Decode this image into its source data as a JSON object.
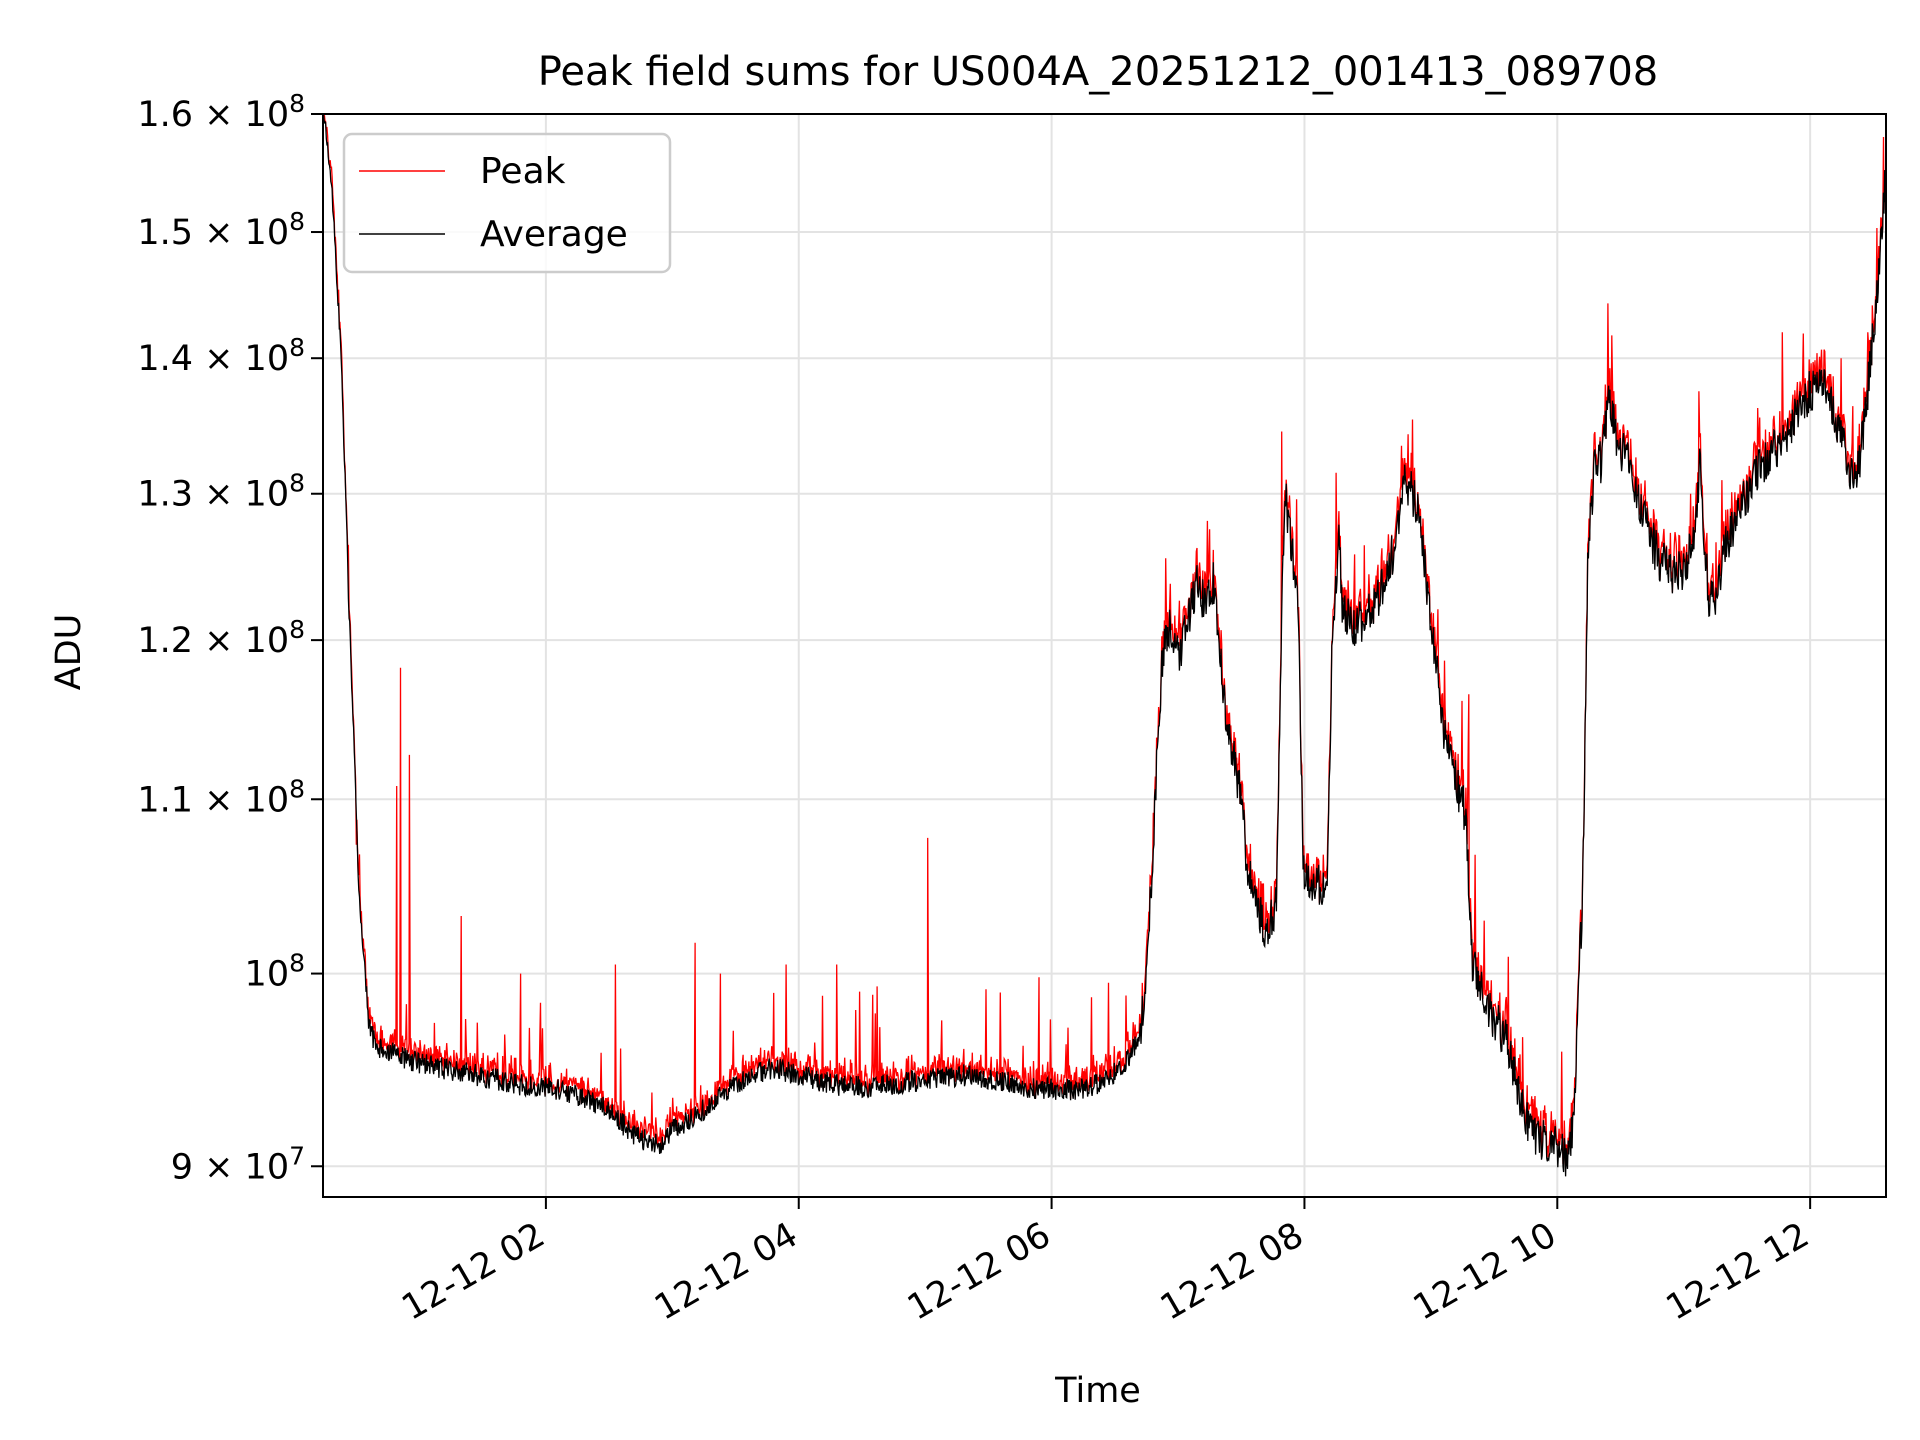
{
  "chart_data": {
    "type": "line",
    "title": "Peak field sums for US004A_20251212_001413_089708",
    "xlabel": "Time",
    "ylabel": "ADU",
    "yscale": "log",
    "ylim": [
      88500000,
      160000000
    ],
    "xlim_hours": [
      0.2369,
      12.6
    ],
    "grid": true,
    "legend_position": "upper-left",
    "x_ticks": [
      {
        "hour": 2,
        "label": "12-12 02"
      },
      {
        "hour": 4,
        "label": "12-12 04"
      },
      {
        "hour": 6,
        "label": "12-12 06"
      },
      {
        "hour": 8,
        "label": "12-12 08"
      },
      {
        "hour": 10,
        "label": "12-12 10"
      },
      {
        "hour": 12,
        "label": "12-12 12"
      }
    ],
    "y_ticks": [
      {
        "value": 90000000,
        "mantissa": "9",
        "exponent": "7",
        "is_power": false
      },
      {
        "value": 100000000,
        "mantissa": "10",
        "exponent": "8",
        "is_power": true
      },
      {
        "value": 110000000,
        "mantissa": "1.1",
        "exponent": "8",
        "is_power": false
      },
      {
        "value": 120000000,
        "mantissa": "1.2",
        "exponent": "8",
        "is_power": false
      },
      {
        "value": 130000000,
        "mantissa": "1.3",
        "exponent": "8",
        "is_power": false
      },
      {
        "value": 140000000,
        "mantissa": "1.4",
        "exponent": "8",
        "is_power": false
      },
      {
        "value": 150000000,
        "mantissa": "1.5",
        "exponent": "8",
        "is_power": false
      },
      {
        "value": 160000000,
        "mantissa": "1.6",
        "exponent": "8",
        "is_power": false
      }
    ],
    "times_symbol": "×",
    "series": [
      {
        "name": "Peak",
        "color": "#ff0000"
      },
      {
        "name": "Average",
        "color": "#000000"
      }
    ],
    "average_anchors": [
      [
        0.237,
        160
      ],
      [
        0.3,
        155
      ],
      [
        0.38,
        140
      ],
      [
        0.45,
        120
      ],
      [
        0.52,
        105
      ],
      [
        0.6,
        97.0
      ],
      [
        0.68,
        96.0
      ],
      [
        0.8,
        95.7
      ],
      [
        1.0,
        95.2
      ],
      [
        1.3,
        94.8
      ],
      [
        1.6,
        94.4
      ],
      [
        1.8,
        94.1
      ],
      [
        2.0,
        94.0
      ],
      [
        2.3,
        93.5
      ],
      [
        2.5,
        92.8
      ],
      [
        2.7,
        91.5
      ],
      [
        2.9,
        91.0
      ],
      [
        3.0,
        91.8
      ],
      [
        3.2,
        92.6
      ],
      [
        3.4,
        93.6
      ],
      [
        3.6,
        94.5
      ],
      [
        3.8,
        95.0
      ],
      [
        4.0,
        94.6
      ],
      [
        4.3,
        94.1
      ],
      [
        4.6,
        94.0
      ],
      [
        5.0,
        94.4
      ],
      [
        5.3,
        94.6
      ],
      [
        5.6,
        94.3
      ],
      [
        5.8,
        94.0
      ],
      [
        6.0,
        93.9
      ],
      [
        6.2,
        93.8
      ],
      [
        6.4,
        94.2
      ],
      [
        6.55,
        95.0
      ],
      [
        6.7,
        96.5
      ],
      [
        6.73,
        98.5
      ],
      [
        6.78,
        104
      ],
      [
        6.82,
        110
      ],
      [
        6.87,
        118
      ],
      [
        6.92,
        121
      ],
      [
        7.0,
        119
      ],
      [
        7.08,
        121
      ],
      [
        7.15,
        124
      ],
      [
        7.22,
        122
      ],
      [
        7.28,
        124
      ],
      [
        7.33,
        119
      ],
      [
        7.4,
        114
      ],
      [
        7.48,
        111
      ],
      [
        7.55,
        106
      ],
      [
        7.62,
        104
      ],
      [
        7.7,
        102
      ],
      [
        7.78,
        104
      ],
      [
        7.82,
        122
      ],
      [
        7.85,
        130
      ],
      [
        7.9,
        126
      ],
      [
        7.95,
        122
      ],
      [
        7.99,
        106
      ],
      [
        8.05,
        104.5
      ],
      [
        8.12,
        105
      ],
      [
        8.18,
        104.8
      ],
      [
        8.22,
        120
      ],
      [
        8.27,
        127
      ],
      [
        8.3,
        122
      ],
      [
        8.4,
        121
      ],
      [
        8.5,
        121.5
      ],
      [
        8.6,
        123
      ],
      [
        8.7,
        126
      ],
      [
        8.8,
        131
      ],
      [
        8.9,
        129
      ],
      [
        8.95,
        125
      ],
      [
        9.05,
        118
      ],
      [
        9.1,
        114
      ],
      [
        9.2,
        111
      ],
      [
        9.28,
        109
      ],
      [
        9.32,
        101
      ],
      [
        9.4,
        99
      ],
      [
        9.5,
        97.5
      ],
      [
        9.6,
        96.5
      ],
      [
        9.7,
        93.5
      ],
      [
        9.8,
        91.5
      ],
      [
        9.9,
        91.2
      ],
      [
        10.0,
        91.0
      ],
      [
        10.08,
        90.3
      ],
      [
        10.13,
        92
      ],
      [
        10.17,
        100
      ],
      [
        10.2,
        104
      ],
      [
        10.24,
        125
      ],
      [
        10.3,
        133
      ],
      [
        10.35,
        132
      ],
      [
        10.4,
        137
      ],
      [
        10.5,
        133
      ],
      [
        10.55,
        134
      ],
      [
        10.62,
        130
      ],
      [
        10.7,
        128
      ],
      [
        10.8,
        125.5
      ],
      [
        10.9,
        124.5
      ],
      [
        11.0,
        124.5
      ],
      [
        11.05,
        126
      ],
      [
        11.1,
        128
      ],
      [
        11.13,
        133
      ],
      [
        11.16,
        127
      ],
      [
        11.2,
        122.5
      ],
      [
        11.25,
        123
      ],
      [
        11.32,
        126
      ],
      [
        11.4,
        128
      ],
      [
        11.5,
        130
      ],
      [
        11.6,
        132
      ],
      [
        11.7,
        133
      ],
      [
        11.8,
        133.5
      ],
      [
        11.9,
        136
      ],
      [
        12.0,
        137.5
      ],
      [
        12.08,
        138.5
      ],
      [
        12.15,
        137
      ],
      [
        12.22,
        135
      ],
      [
        12.3,
        132
      ],
      [
        12.35,
        131
      ],
      [
        12.4,
        133
      ],
      [
        12.45,
        137
      ],
      [
        12.5,
        142
      ],
      [
        12.55,
        148
      ],
      [
        12.6,
        155
      ]
    ],
    "spikes": [
      [
        0.85,
        118.2
      ],
      [
        0.82,
        110.8
      ],
      [
        0.92,
        112.7
      ],
      [
        0.5,
        107.3
      ],
      [
        1.33,
        103.2
      ],
      [
        1.8,
        100.0
      ],
      [
        2.55,
        100.5
      ],
      [
        3.18,
        101.7
      ],
      [
        3.38,
        100.0
      ],
      [
        3.9,
        100.5
      ],
      [
        4.3,
        100.5
      ],
      [
        5.02,
        107.7
      ],
      [
        4.62,
        99.3
      ],
      [
        5.9,
        99.8
      ],
      [
        6.45,
        99.5
      ],
      [
        7.15,
        126.2
      ],
      [
        7.25,
        127.5
      ],
      [
        7.82,
        134.5
      ],
      [
        8.25,
        131.5
      ],
      [
        8.82,
        134.3
      ],
      [
        9.3,
        116.5
      ],
      [
        10.38,
        138.0
      ],
      [
        11.12,
        137.5
      ],
      [
        11.78,
        142.0
      ],
      [
        12.58,
        158.0
      ]
    ]
  }
}
